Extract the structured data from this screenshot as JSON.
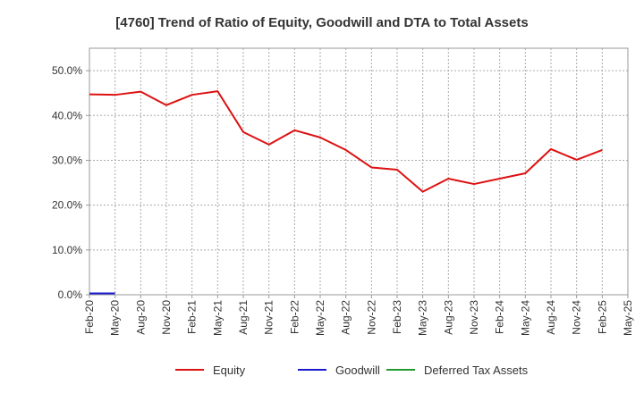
{
  "chart_data": {
    "type": "line",
    "title": "[4760]  Trend of Ratio of Equity, Goodwill and DTA to Total Assets",
    "xlabel": "",
    "ylabel": "",
    "ylim": [
      0,
      55
    ],
    "yticks": [
      0,
      10,
      20,
      30,
      40,
      50
    ],
    "ytick_labels": [
      "0.0%",
      "10.0%",
      "20.0%",
      "30.0%",
      "40.0%",
      "50.0%"
    ],
    "x_tick_labels": [
      "Feb-20",
      "May-20",
      "Aug-20",
      "Nov-20",
      "Feb-21",
      "May-21",
      "Aug-21",
      "Nov-21",
      "Feb-22",
      "May-22",
      "Aug-22",
      "Nov-22",
      "Feb-23",
      "May-23",
      "Aug-23",
      "Nov-23",
      "Feb-24",
      "May-24",
      "Aug-24",
      "Nov-24",
      "Feb-25",
      "May-25"
    ],
    "grid": true,
    "legend_position": "bottom",
    "series": [
      {
        "name": "Equity",
        "color": "#dd1111",
        "x": [
          "Feb-20",
          "May-20",
          "Aug-20",
          "Nov-20",
          "Feb-21",
          "May-21",
          "Aug-21",
          "Nov-21",
          "Feb-22",
          "May-22",
          "Aug-22",
          "Nov-22",
          "Feb-23",
          "May-23",
          "Aug-23",
          "Nov-23",
          "Feb-24",
          "May-24",
          "Aug-24",
          "Nov-24",
          "Feb-25"
        ],
        "values": [
          44.7,
          44.6,
          45.3,
          42.3,
          44.6,
          45.4,
          36.3,
          33.5,
          36.7,
          35.1,
          32.3,
          28.4,
          27.9,
          23.0,
          25.9,
          24.7,
          25.9,
          27.1,
          32.5,
          30.1,
          32.3
        ]
      },
      {
        "name": "Goodwill",
        "color": "#1a1acc",
        "x": [
          "Feb-20",
          "May-20"
        ],
        "values": [
          0.3,
          0.3
        ]
      },
      {
        "name": "Deferred Tax Assets",
        "color": "#22992e",
        "x": [],
        "values": []
      }
    ]
  }
}
